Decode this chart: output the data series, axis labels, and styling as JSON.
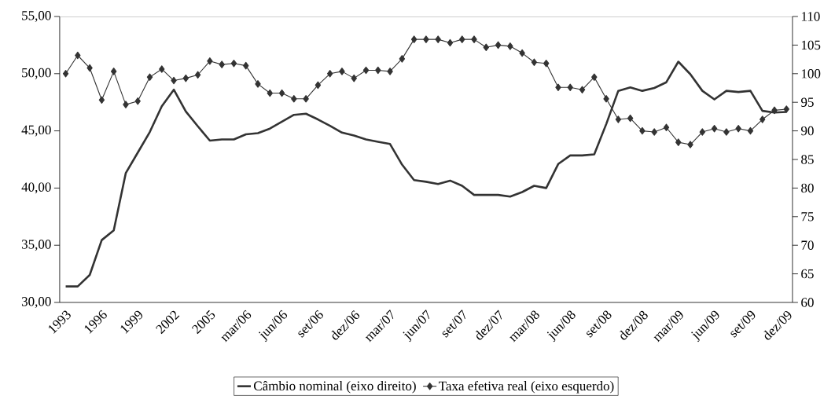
{
  "chart_data": {
    "type": "line",
    "categories": [
      "1993",
      null,
      null,
      "1996",
      null,
      null,
      "1999",
      null,
      null,
      "2002",
      null,
      null,
      "2005",
      null,
      null,
      "mar/06",
      null,
      null,
      "jun/06",
      null,
      null,
      "set/06",
      null,
      null,
      "dez/06",
      null,
      null,
      "mar/07",
      null,
      null,
      "jun/07",
      null,
      null,
      "set/07",
      null,
      null,
      "dez/07",
      null,
      null,
      "mar/08",
      null,
      null,
      "jun/08",
      null,
      null,
      "set/08",
      null,
      null,
      "dez/08",
      null,
      null,
      "mar/09",
      null,
      null,
      "jun/09",
      null,
      null,
      "set/09",
      null,
      null,
      "dez/09"
    ],
    "series": [
      {
        "name": "Câmbio nominal (eixo direito)",
        "color": "#333333",
        "axis": "y2",
        "marker": "none",
        "values": [
          62.8,
          62.8,
          64.8,
          70.9,
          72.6,
          82.6,
          86.2,
          89.8,
          94.3,
          97.2,
          93.4,
          90.8,
          88.3,
          88.5,
          88.5,
          89.4,
          89.6,
          90.4,
          91.6,
          92.8,
          93.0,
          92.0,
          90.9,
          89.7,
          89.2,
          88.5,
          88.1,
          87.7,
          84.1,
          81.4,
          81.1,
          80.7,
          81.3,
          80.4,
          78.8,
          78.8,
          78.8,
          78.5,
          79.3,
          80.4,
          80.0,
          84.2,
          85.7,
          85.7,
          85.9,
          91.2,
          97.0,
          97.6,
          97.0,
          97.5,
          98.5,
          102.1,
          99.9,
          97.0,
          95.5,
          97.0,
          96.8,
          97.0,
          93.5,
          93.2,
          93.3
        ]
      },
      {
        "name": "Taxa efetiva real (eixo esquerdo)",
        "color": "#333333",
        "axis": "y",
        "marker": "diamond",
        "values": [
          50.0,
          51.6,
          50.5,
          47.7,
          50.2,
          47.3,
          47.6,
          49.7,
          50.4,
          49.4,
          49.6,
          49.9,
          51.1,
          50.8,
          50.9,
          50.7,
          49.1,
          48.3,
          48.3,
          47.8,
          47.8,
          49.0,
          50.0,
          50.2,
          49.6,
          50.3,
          50.3,
          50.2,
          51.3,
          53.0,
          53.0,
          53.0,
          52.7,
          53.0,
          53.0,
          52.3,
          52.5,
          52.4,
          51.8,
          51.0,
          50.9,
          48.8,
          48.8,
          48.6,
          49.7,
          47.8,
          46.0,
          46.1,
          45.0,
          44.9,
          45.3,
          44.0,
          43.8,
          44.9,
          45.2,
          44.9,
          45.2,
          45.0,
          46.0,
          46.8,
          46.9
        ]
      }
    ],
    "ylim": [
      30,
      55
    ],
    "yticks": [
      {
        "value": 30,
        "label": "30,00"
      },
      {
        "value": 35,
        "label": "35,00"
      },
      {
        "value": 40,
        "label": "40,00"
      },
      {
        "value": 45,
        "label": "45,00"
      },
      {
        "value": 50,
        "label": "50,00"
      },
      {
        "value": 55,
        "label": "55,00"
      }
    ],
    "y2lim": [
      60,
      110
    ],
    "y2ticks": [
      60,
      65,
      70,
      75,
      80,
      85,
      90,
      95,
      100,
      105,
      110
    ],
    "legend": "bottom"
  }
}
